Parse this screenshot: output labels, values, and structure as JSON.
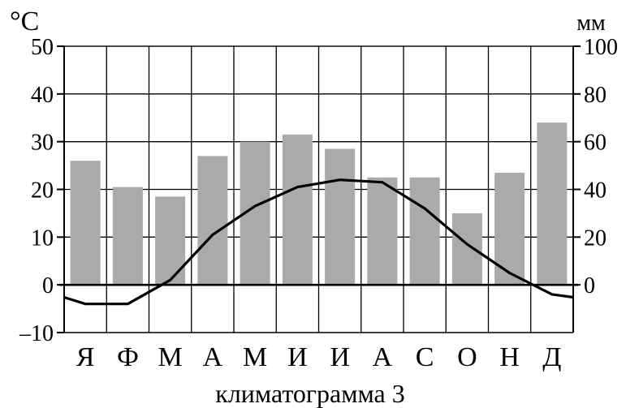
{
  "chart_data": {
    "type": "bar",
    "title": "",
    "caption": "климатограмма 3",
    "categories": [
      "Я",
      "Ф",
      "М",
      "А",
      "М",
      "И",
      "И",
      "А",
      "С",
      "О",
      "Н",
      "Д"
    ],
    "series": [
      {
        "type": "bar",
        "axis": "right",
        "values": [
          52,
          41,
          37,
          54,
          60,
          63,
          57,
          45,
          45,
          30,
          47,
          68
        ]
      },
      {
        "type": "line",
        "axis": "left",
        "values": [
          -4,
          -4,
          1,
          10.5,
          16.5,
          20.5,
          22,
          21.5,
          16,
          8.5,
          2.5,
          -2
        ],
        "start_value": -2.6,
        "end_value": -2.6
      }
    ],
    "y_left": {
      "unit": "°C",
      "ylim": [
        -10,
        50
      ],
      "ticks": [
        -10,
        0,
        10,
        20,
        30,
        40,
        50
      ],
      "tick_labels": [
        "–10",
        "0",
        "10",
        "20",
        "30",
        "40",
        "50"
      ]
    },
    "y_right": {
      "unit": "мм",
      "ylim": [
        -20,
        100
      ],
      "ticks": [
        0,
        20,
        40,
        60,
        80,
        100
      ],
      "tick_labels": [
        "0",
        "20",
        "40",
        "60",
        "80",
        "100"
      ]
    },
    "grid": true,
    "legend": "none",
    "colors": {
      "bar": "#aaaaaa",
      "line": "#000000",
      "grid": "#000000"
    }
  }
}
